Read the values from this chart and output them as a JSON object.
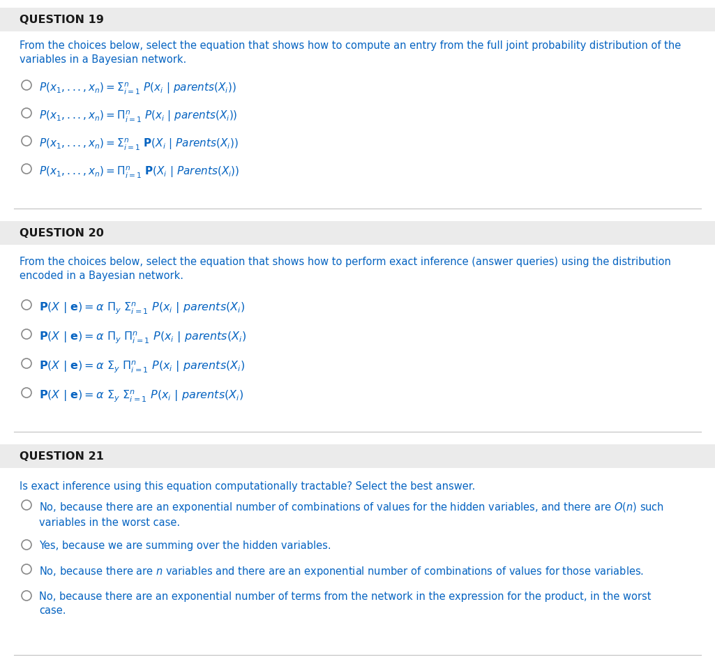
{
  "bg_color": "#ffffff",
  "black": "#1a1a1a",
  "blue": "#0563C1",
  "dark_gray": "#333333",
  "header_bg": "#ebebeb",
  "divider_color": "#c0c0c0",
  "circle_color": "#888888",
  "q19_title": "QUESTION 19",
  "q19_desc": "From the choices below, select the equation that shows how to compute an entry from the full joint probability distribution of the\nvariables in a Bayesian network.",
  "q19_opts": [
    "$P(x_1, ..., x_n) = \\Sigma^n_{i=1}\\ P(x_i\\ |\\ parents(X_i))$",
    "$P(x_1, ..., x_n) = \\Pi^n_{i=1}\\ P(x_i\\ |\\ parents(X_i))$",
    "$P(x_1, ..., x_n) = \\Sigma^n_{i=1}\\ \\mathbf{P}(X_i\\ |\\ \\mathit{Parents}(X_i))$",
    "$P(x_1, ..., x_n) = \\Pi^n_{i=1}\\ \\mathbf{P}(X_i\\ |\\ \\mathit{Parents}(X_i))$"
  ],
  "q20_title": "QUESTION 20",
  "q20_desc": "From the choices below, select the equation that shows how to perform exact inference (answer queries) using the distribution\nencoded in a Bayesian network.",
  "q20_opts": [
    "$\\mathbf{P}(X\\ |\\ \\mathbf{e}) = \\alpha\\ \\Pi_y\\ \\Sigma^n_{i=1}\\ P(x_i\\ |\\ parents(X_i)$",
    "$\\mathbf{P}(X\\ |\\ \\mathbf{e}) = \\alpha\\ \\Pi_y\\ \\Pi^n_{i=1}\\ P(x_i\\ |\\ parents(X_i)$",
    "$\\mathbf{P}(X\\ |\\ \\mathbf{e}) = \\alpha\\ \\Sigma_y\\ \\Pi^n_{i=1}\\ P(x_i\\ |\\ parents(X_i)$",
    "$\\mathbf{P}(X\\ |\\ \\mathbf{e}) = \\alpha\\ \\Sigma_y\\ \\Sigma^n_{i=1}\\ P(x_i\\ |\\ parents(X_i)$"
  ],
  "q21_title": "QUESTION 21",
  "q21_desc": "Is exact inference using this equation computationally tractable? Select the best answer.",
  "q21_opts": [
    "No, because there are an exponential number of combinations of values for the hidden variables, and there are $O(n)$ such\nvariables in the worst case.",
    "Yes, because we are summing over the hidden variables.",
    "No, because there are $n$ variables and there are an exponential number of combinations of values for those variables.",
    "No, because there are an exponential number of terms from the network in the expression for the product, in the worst\ncase."
  ]
}
